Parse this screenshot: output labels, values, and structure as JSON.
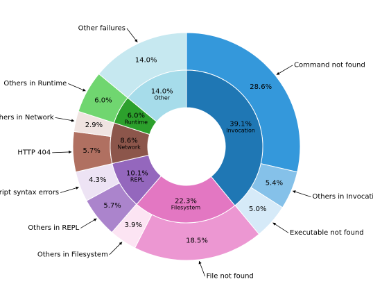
{
  "chart_data": {
    "type": "pie",
    "title": "",
    "inner": [
      {
        "name": "Invocation",
        "value": 39.1,
        "label": "39.1%",
        "color": "#1f77b4"
      },
      {
        "name": "Filesystem",
        "value": 22.3,
        "label": "22.3%",
        "color": "#e377c2"
      },
      {
        "name": "REPL",
        "value": 10.1,
        "label": "10.1%",
        "color": "#9467bd"
      },
      {
        "name": "Network",
        "value": 8.6,
        "label": "8.6%",
        "color": "#8c564b"
      },
      {
        "name": "Runtime",
        "value": 6.0,
        "label": "6.0%",
        "color": "#2ca02c"
      },
      {
        "name": "Other",
        "value": 14.0,
        "label": "14.0%",
        "color": "#a6dcea"
      }
    ],
    "outer": [
      {
        "name": "Command not found",
        "value": 28.6,
        "label": "28.6%",
        "color": "#3498db"
      },
      {
        "name": "Others in Invocation",
        "value": 5.4,
        "label": "5.4%",
        "color": "#85c1e9"
      },
      {
        "name": "Executable not found",
        "value": 5.0,
        "label": "5.0%",
        "color": "#d6eaf8"
      },
      {
        "name": "File not found",
        "value": 18.5,
        "label": "18.5%",
        "color": "#ec97d2"
      },
      {
        "name": "Others in Filesystem",
        "value": 3.9,
        "label": "3.9%",
        "color": "#fce4f3"
      },
      {
        "name": "Others in REPL",
        "value": 5.7,
        "label": "5.7%",
        "color": "#ab84cc"
      },
      {
        "name": "Script syntax errors",
        "value": 4.3,
        "label": "4.3%",
        "color": "#ede3f4"
      },
      {
        "name": "HTTP 404",
        "value": 5.7,
        "label": "5.7%",
        "color": "#b07061"
      },
      {
        "name": "Others in Network",
        "value": 2.9,
        "label": "2.9%",
        "color": "#f0e4e1"
      },
      {
        "name": "Others in Runtime",
        "value": 6.0,
        "label": "6.0%",
        "color": "#70d670"
      },
      {
        "name": "Other failures",
        "value": 14.0,
        "label": "14.0%",
        "color": "#c6e8f0"
      }
    ]
  }
}
